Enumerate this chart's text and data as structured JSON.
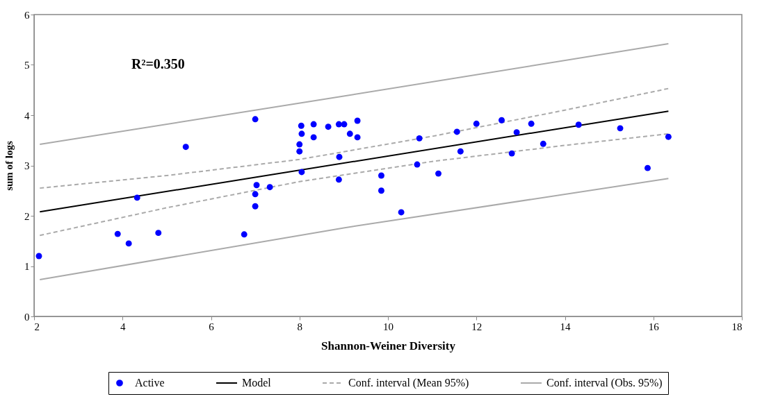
{
  "chart_data": {
    "type": "scatter",
    "xlabel": "Shannon-Weiner Diversity",
    "ylabel": "sum of logs",
    "annotations": [
      "R²=0.350"
    ],
    "xlim": [
      2,
      18
    ],
    "xticks": [
      2,
      4,
      6,
      8,
      10,
      12,
      14,
      16,
      18
    ],
    "ylim": [
      0,
      6
    ],
    "yticks": [
      0,
      1,
      2,
      3,
      4,
      5,
      6
    ],
    "grid": false,
    "legend": "bottom",
    "marker": "circle",
    "series": [
      {
        "name": "Active",
        "color": "#0000ff",
        "x": [
          2.11,
          3.89,
          4.14,
          4.33,
          4.81,
          5.43,
          6.75,
          7.0,
          7.0,
          7.0,
          7.03,
          7.33,
          8.0,
          8.0,
          8.04,
          8.05,
          8.05,
          8.32,
          8.32,
          8.65,
          8.89,
          9.01,
          8.89,
          8.9,
          9.14,
          9.31,
          9.31,
          9.85,
          9.85,
          10.3,
          10.66,
          10.71,
          11.14,
          11.56,
          11.64,
          12.0,
          12.57,
          12.8,
          12.91,
          13.24,
          13.51,
          14.31,
          15.25,
          15.87,
          16.34
        ],
        "values": [
          1.2,
          1.64,
          1.45,
          2.36,
          1.66,
          3.37,
          1.63,
          3.92,
          2.43,
          2.19,
          2.61,
          2.57,
          3.42,
          3.28,
          3.79,
          3.63,
          2.87,
          3.82,
          3.56,
          3.77,
          3.82,
          3.82,
          2.72,
          3.17,
          3.63,
          3.89,
          3.56,
          2.8,
          2.5,
          2.07,
          3.02,
          3.54,
          2.84,
          3.67,
          3.28,
          3.83,
          3.9,
          3.24,
          3.66,
          3.83,
          3.43,
          3.81,
          3.74,
          2.95,
          3.57
        ]
      },
      {
        "name": "Model",
        "color": "#000000",
        "type": "line",
        "line_style": "solid",
        "marker": "none",
        "x": [
          2.13,
          16.34
        ],
        "values": [
          2.08,
          4.08
        ]
      },
      {
        "name": "Conf. interval (Mean 95%)",
        "color": "#aaaaaa",
        "type": "line",
        "line_style": "dashed",
        "marker": "none",
        "x": [
          2.13,
          5,
          8,
          11,
          14,
          16.34
        ],
        "values": [
          2.55,
          2.8,
          3.12,
          3.58,
          4.1,
          4.53
        ]
      },
      {
        "name": "Conf. interval (Obs. 95%)",
        "color": "#aaaaaa",
        "type": "line",
        "line_style": "solid",
        "marker": "none",
        "x": [
          2.13,
          9,
          16.34
        ],
        "values": [
          3.42,
          4.38,
          5.42
        ]
      },
      {
        "color": "#aaaaaa",
        "type": "line",
        "line_style": "dashed",
        "marker": "none",
        "x": [
          2.13,
          5,
          8,
          11,
          14,
          16.34
        ],
        "values": [
          1.61,
          2.16,
          2.68,
          3.08,
          3.4,
          3.63
        ]
      },
      {
        "color": "#aaaaaa",
        "type": "line",
        "line_style": "solid",
        "marker": "none",
        "x": [
          2.13,
          9,
          16.34
        ],
        "values": [
          0.73,
          1.76,
          2.74
        ]
      }
    ]
  }
}
